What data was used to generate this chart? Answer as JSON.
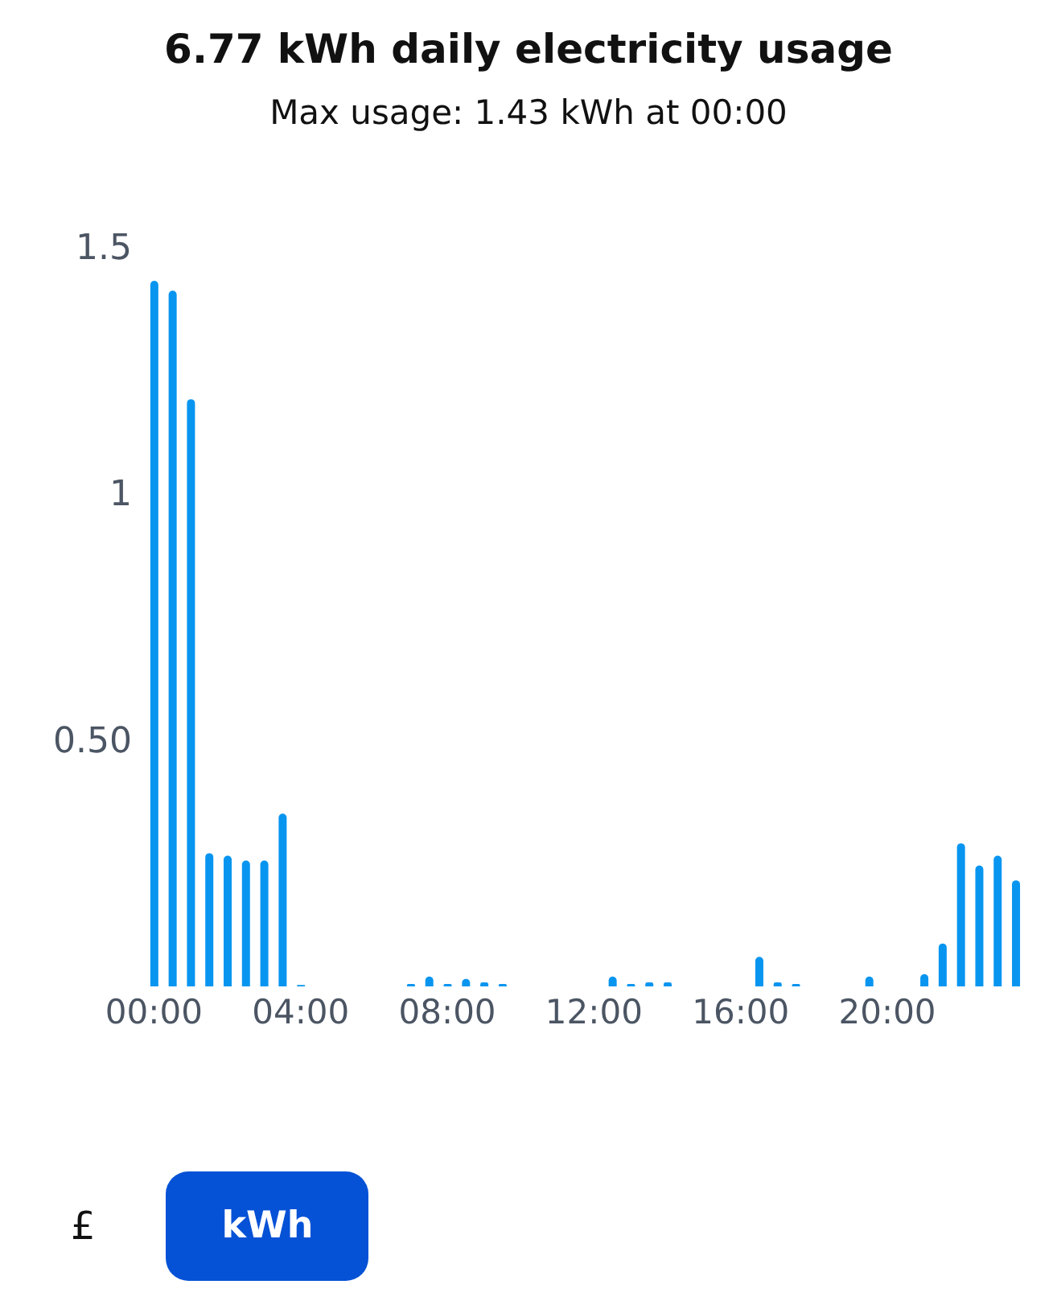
{
  "chart_data": {
    "type": "bar",
    "title": "6.77 kWh daily electricity usage",
    "subtitle": "Max usage: 1.43 kWh at 00:00",
    "categories": [
      "00:00",
      null,
      null,
      null,
      null,
      null,
      null,
      null,
      "04:00",
      null,
      null,
      null,
      null,
      null,
      null,
      null,
      "08:00",
      null,
      null,
      null,
      null,
      null,
      null,
      null,
      "12:00",
      null,
      null,
      null,
      null,
      null,
      null,
      null,
      "16:00",
      null,
      null,
      null,
      null,
      null,
      null,
      null,
      "20:00",
      null,
      null,
      null,
      null,
      null,
      null,
      null
    ],
    "values": [
      1.43,
      1.41,
      1.19,
      0.27,
      0.265,
      0.255,
      0.255,
      0.35,
      0.003,
      null,
      0,
      0,
      0,
      0,
      0.005,
      0.02,
      0.005,
      0.015,
      0.008,
      0.005,
      null,
      null,
      0,
      null,
      null,
      0.02,
      0.005,
      0.008,
      0.008,
      null,
      null,
      null,
      null,
      0.06,
      0.008,
      0.005,
      0,
      null,
      0,
      0.02,
      0,
      0,
      0.025,
      0.087,
      0.29,
      0.245,
      0.265,
      0.215
    ],
    "color": "#0895f0",
    "ylim": [
      0,
      1.5
    ],
    "yticks": [
      {
        "value": 0.5,
        "label": "0.50"
      },
      1,
      1.5
    ],
    "grid": false,
    "annotations": [
      "£",
      "kWh"
    ]
  }
}
